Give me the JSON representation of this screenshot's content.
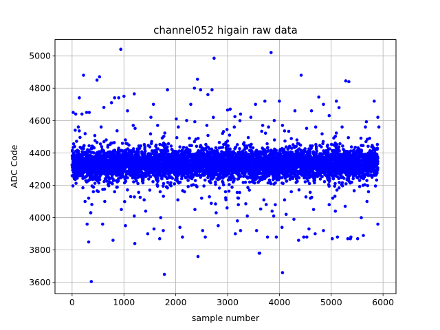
{
  "chart_data": {
    "type": "scatter",
    "title": "channel052 higain raw data",
    "xlabel": "sample number",
    "ylabel": "ADC Code",
    "xlim": [
      -330,
      6250
    ],
    "ylim": [
      3530,
      5100
    ],
    "xticks": [
      0,
      1000,
      2000,
      3000,
      4000,
      5000,
      6000
    ],
    "yticks": [
      3600,
      3800,
      4000,
      4200,
      4400,
      4600,
      4800,
      5000
    ],
    "grid": true,
    "marker_color": "#0000ff",
    "n_samples": 5900,
    "core_band": [
      4240,
      4420
    ],
    "series": [
      {
        "x": [
          940,
          3840,
          2740,
          220,
          530,
          480,
          2420,
          5280,
          5340,
          4420,
          2360,
          2480,
          2620,
          2700,
          1840,
          1200,
          1000,
          900,
          140,
          330,
          760,
          820,
          5100,
          3720,
          4000,
          4760,
          4850,
          5830,
          1570,
          2290,
          3000,
          3050,
          3540,
          4620,
          5150,
          5900,
          20,
          70,
          190,
          280,
          1070,
          1520,
          3250,
          4300,
          2010,
          2210,
          3450,
          3900,
          4960,
          60,
          120,
          560,
          1180,
          1650,
          2050,
          2600,
          3130,
          3790,
          4060,
          4700,
          5210,
          5660,
          5920,
          410,
          820,
          1500,
          2170,
          2960,
          3420,
          4230,
          5110,
          5720,
          320,
          630,
          1130,
          1390,
          2040,
          2500,
          3210,
          3700,
          4100,
          4600,
          5030,
          5690,
          290,
          950,
          1420,
          1710,
          2370,
          2780,
          3380,
          3860,
          4130,
          4660,
          5080,
          5580,
          790,
          1210,
          1580,
          2080,
          2520,
          3190,
          4280,
          4850,
          320,
          590,
          1030,
          1690,
          2820,
          3250,
          3940,
          4470,
          5320,
          5900,
          360,
          1760,
          2130,
          3150,
          3770,
          4690,
          5380,
          250,
          1460,
          2430,
          3560,
          4530,
          5120,
          5510,
          1780,
          4060,
          4370,
          5020,
          2990,
          370,
          3610,
          1820,
          2410,
          3620,
          1700,
          2570,
          5620,
          1200,
          4570,
          360,
          3890,
          4050,
          4960,
          5270,
          5370
        ],
        "y": [
          5040,
          5020,
          4985,
          4880,
          4870,
          4850,
          4855,
          4845,
          4840,
          4880,
          4800,
          4790,
          4760,
          4790,
          4790,
          4765,
          4750,
          4740,
          4740,
          4650,
          4710,
          4740,
          4720,
          4720,
          4720,
          4745,
          4700,
          4720,
          4700,
          4700,
          4665,
          4670,
          4700,
          4660,
          4680,
          4620,
          4650,
          4640,
          4640,
          4650,
          4660,
          4620,
          4640,
          4660,
          4610,
          4600,
          4620,
          4600,
          4630,
          4540,
          4560,
          4560,
          4570,
          4570,
          4560,
          4570,
          4560,
          4560,
          4570,
          4560,
          4560,
          4560,
          4560,
          4160,
          4160,
          4170,
          4160,
          4160,
          4170,
          4160,
          4170,
          4160,
          4120,
          4100,
          4130,
          4110,
          4110,
          4120,
          4120,
          4110,
          4110,
          4120,
          4120,
          4100,
          3960,
          4050,
          4040,
          4000,
          4050,
          4030,
          4010,
          4040,
          4020,
          4050,
          4040,
          4000,
          3860,
          3840,
          3930,
          3940,
          3920,
          3980,
          3990,
          3920,
          3850,
          3960,
          3950,
          3870,
          3950,
          3920,
          3880,
          3880,
          3870,
          3960,
          4030,
          3920,
          3880,
          3900,
          3880,
          3900,
          3880,
          4100,
          3900,
          3760,
          3920,
          3880,
          3880,
          3870,
          3650,
          3660,
          3860,
          3870,
          4060,
          3605,
          3780,
          4190,
          4190,
          3780,
          4160,
          3880,
          3890,
          4010,
          3930,
          4030,
          4010,
          3940,
          4080,
          4070,
          3870
        ]
      }
    ]
  }
}
